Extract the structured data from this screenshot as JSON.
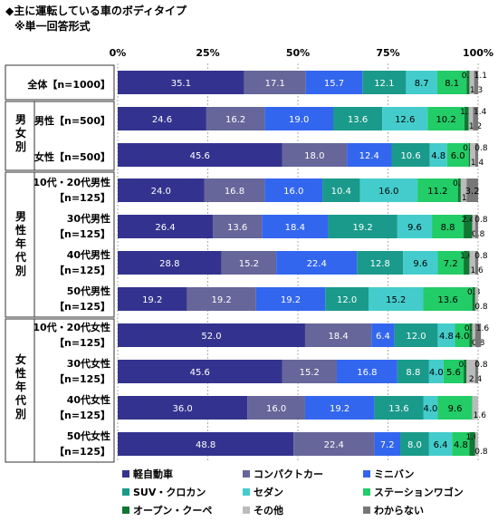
{
  "title": "◆主に運転している車のボディタイプ",
  "subtitle": "※単一回答形式",
  "groups": {
    "male": "男女別",
    "male_age": "男性年代別",
    "female_age": "女性年代別"
  },
  "chart_data": {
    "type": "bar",
    "orientation": "horizontal",
    "stacked_percent": true,
    "xlim": [
      0,
      100
    ],
    "xticks": [
      "0%",
      "25%",
      "50%",
      "75%",
      "100%"
    ],
    "grid": true,
    "legend_position": "bottom",
    "categories": [
      [
        "全体【n=1000】"
      ],
      [
        "男性【n=500】"
      ],
      [
        "女性【n=500】"
      ],
      [
        "10代・20代男性",
        "【n=125】"
      ],
      [
        "30代男性",
        "【n=125】"
      ],
      [
        "40代男性",
        "【n=125】"
      ],
      [
        "50代男性",
        "【n=125】"
      ],
      [
        "10代・20代女性",
        "【n=125】"
      ],
      [
        "30代女性",
        "【n=125】"
      ],
      [
        "40代女性",
        "【n=125】"
      ],
      [
        "50代女性",
        "【n=125】"
      ]
    ],
    "series": [
      {
        "name": "軽自動車",
        "color": "#33338f",
        "values": [
          35.1,
          24.6,
          45.6,
          24.0,
          26.4,
          28.8,
          19.2,
          52.0,
          45.6,
          36.0,
          48.8
        ]
      },
      {
        "name": "コンパクトカー",
        "color": "#66669a",
        "values": [
          17.1,
          16.2,
          18.0,
          16.8,
          13.6,
          15.2,
          19.2,
          18.4,
          15.2,
          16.0,
          22.4
        ]
      },
      {
        "name": "ミニバン",
        "color": "#3366ee",
        "values": [
          15.7,
          19.0,
          12.4,
          16.0,
          18.4,
          22.4,
          19.2,
          6.4,
          16.8,
          19.2,
          7.2
        ]
      },
      {
        "name": "SUV・クロカン",
        "color": "#1a9a8a",
        "values": [
          12.1,
          13.6,
          10.6,
          10.4,
          19.2,
          12.8,
          12.0,
          12.0,
          8.8,
          13.6,
          8.0
        ]
      },
      {
        "name": "セダン",
        "color": "#44cccc",
        "values": [
          8.7,
          12.6,
          4.8,
          16.0,
          9.6,
          9.6,
          15.2,
          4.8,
          4.0,
          4.0,
          6.4
        ]
      },
      {
        "name": "ステーションワゴン",
        "color": "#22cc66",
        "values": [
          8.1,
          10.2,
          6.0,
          11.2,
          8.8,
          7.2,
          13.6,
          4.0,
          5.6,
          9.6,
          4.8
        ]
      },
      {
        "name": "オープン・クーペ",
        "color": "#117733",
        "values": [
          0.8,
          1.2,
          0.4,
          0.8,
          2.4,
          1.6,
          0.8,
          0.8,
          0.8,
          0.0,
          1.6
        ]
      },
      {
        "name": "その他",
        "color": "#bbbbbb",
        "values": [
          1.3,
          1.2,
          1.4,
          1.6,
          0.8,
          1.6,
          0.8,
          0.8,
          2.4,
          1.6,
          0.8
        ]
      },
      {
        "name": "わからない",
        "color": "#777777",
        "values": [
          1.1,
          1.4,
          0.8,
          3.2,
          0.8,
          0.8,
          0.0,
          1.6,
          0.8,
          0.0,
          0.0
        ]
      }
    ]
  }
}
